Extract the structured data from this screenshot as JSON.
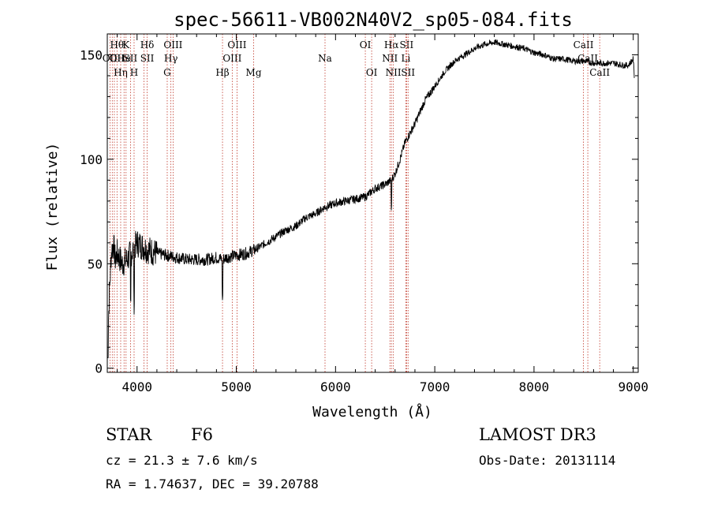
{
  "chart_data": {
    "type": "line",
    "title": "spec-56611-VB002N40V2_sp05-084.fits",
    "xlabel": "Wavelength (Å)",
    "ylabel": "Flux (relative)",
    "xlim": [
      3700,
      9050
    ],
    "ylim": [
      -2,
      160
    ],
    "x_ticks": [
      4000,
      5000,
      6000,
      7000,
      8000,
      9000
    ],
    "x_tick_labels": [
      "4000",
      "5000",
      "6000",
      "7000",
      "8000",
      "9000"
    ],
    "y_ticks": [
      0,
      50,
      100,
      150
    ],
    "y_tick_labels": [
      "0",
      "50",
      "100",
      "150"
    ],
    "series": [
      {
        "name": "flux",
        "color": "#000000",
        "x": [
          3700,
          3720,
          3740,
          3760,
          3780,
          3800,
          3850,
          3900,
          3950,
          4000,
          4100,
          4200,
          4300,
          4400,
          4500,
          4600,
          4700,
          4800,
          4860,
          4900,
          5000,
          5100,
          5200,
          5300,
          5400,
          5500,
          5600,
          5700,
          5800,
          5890,
          5950,
          6000,
          6100,
          6200,
          6300,
          6400,
          6500,
          6560,
          6600,
          6650,
          6700,
          6800,
          6900,
          7000,
          7100,
          7200,
          7300,
          7400,
          7500,
          7600,
          7700,
          7800,
          7900,
          8000,
          8100,
          8200,
          8300,
          8400,
          8500,
          8600,
          8700,
          8800,
          8900,
          8950,
          9000,
          9010
        ],
        "y": [
          5,
          35,
          55,
          60,
          52,
          55,
          50,
          52,
          56,
          60,
          57,
          55,
          54,
          53,
          52,
          52,
          52,
          53,
          52,
          53,
          54,
          55,
          57,
          60,
          63,
          66,
          68,
          72,
          74,
          77,
          78,
          79,
          80,
          81,
          82,
          86,
          88,
          90,
          93,
          100,
          108,
          117,
          128,
          135,
          142,
          147,
          150,
          153,
          155,
          156,
          155,
          154,
          153,
          151,
          150,
          148,
          148,
          147,
          147,
          146,
          146,
          146,
          145,
          145,
          148,
          140
        ]
      }
    ],
    "lines": [
      {
        "x": 3727,
        "labels": [
          {
            "text": "OII",
            "row": 2
          }
        ]
      },
      {
        "x": 3750,
        "labels": []
      },
      {
        "x": 3771,
        "labels": []
      },
      {
        "x": 3798,
        "labels": [
          {
            "text": "Hθ",
            "row": 1
          },
          {
            "text": "OII",
            "row": 2
          }
        ]
      },
      {
        "x": 3835,
        "labels": [
          {
            "text": "Hη",
            "row": 3
          }
        ]
      },
      {
        "x": 3869,
        "labels": [
          {
            "text": "He",
            "row": 2
          }
        ]
      },
      {
        "x": 3889,
        "labels": [
          {
            "text": "K",
            "row": 1
          }
        ]
      },
      {
        "x": 3934,
        "labels": [
          {
            "text": "SII",
            "row": 2
          }
        ]
      },
      {
        "x": 3970,
        "labels": [
          {
            "text": "H",
            "row": 3
          }
        ]
      },
      {
        "x": 4070,
        "labels": []
      },
      {
        "x": 4102,
        "labels": [
          {
            "text": "Hδ",
            "row": 1
          },
          {
            "text": "SII",
            "row": 2
          }
        ]
      },
      {
        "x": 4304,
        "labels": [
          {
            "text": "G",
            "row": 3
          }
        ]
      },
      {
        "x": 4341,
        "labels": [
          {
            "text": "Hγ",
            "row": 2
          }
        ]
      },
      {
        "x": 4363,
        "labels": [
          {
            "text": "OIII",
            "row": 1
          }
        ]
      },
      {
        "x": 4861,
        "labels": [
          {
            "text": "Hβ",
            "row": 3
          }
        ]
      },
      {
        "x": 4959,
        "labels": [
          {
            "text": "OIII",
            "row": 2
          }
        ]
      },
      {
        "x": 5007,
        "labels": [
          {
            "text": "OIII",
            "row": 1
          }
        ]
      },
      {
        "x": 5175,
        "labels": [
          {
            "text": "Mg",
            "row": 3
          }
        ]
      },
      {
        "x": 5894,
        "labels": [
          {
            "text": "Na",
            "row": 2
          }
        ]
      },
      {
        "x": 6300,
        "labels": [
          {
            "text": "OI",
            "row": 1
          }
        ]
      },
      {
        "x": 6364,
        "labels": [
          {
            "text": "OI",
            "row": 3
          }
        ]
      },
      {
        "x": 6548,
        "labels": [
          {
            "text": "NII",
            "row": 2
          }
        ]
      },
      {
        "x": 6563,
        "labels": [
          {
            "text": "Hα",
            "row": 1
          }
        ]
      },
      {
        "x": 6583,
        "labels": [
          {
            "text": "NII",
            "row": 3
          }
        ]
      },
      {
        "x": 6708,
        "labels": [
          {
            "text": "Li",
            "row": 2
          }
        ]
      },
      {
        "x": 6716,
        "labels": [
          {
            "text": "SII",
            "row": 1
          }
        ]
      },
      {
        "x": 6731,
        "labels": [
          {
            "text": "SII",
            "row": 3
          }
        ]
      },
      {
        "x": 8498,
        "labels": [
          {
            "text": "CaII",
            "row": 1
          }
        ]
      },
      {
        "x": 8542,
        "labels": [
          {
            "text": "CaII",
            "row": 2
          }
        ]
      },
      {
        "x": 8662,
        "labels": [
          {
            "text": "CaII",
            "row": 3
          }
        ]
      }
    ]
  },
  "info": {
    "object_class": "STAR",
    "subclass": "F6",
    "survey": "LAMOST DR3",
    "redshift": "cz = 21.3 ± 7.6 km/s",
    "obs_date": "Obs-Date: 20131114",
    "coords": "RA =   1.74637, DEC =  39.20788"
  }
}
